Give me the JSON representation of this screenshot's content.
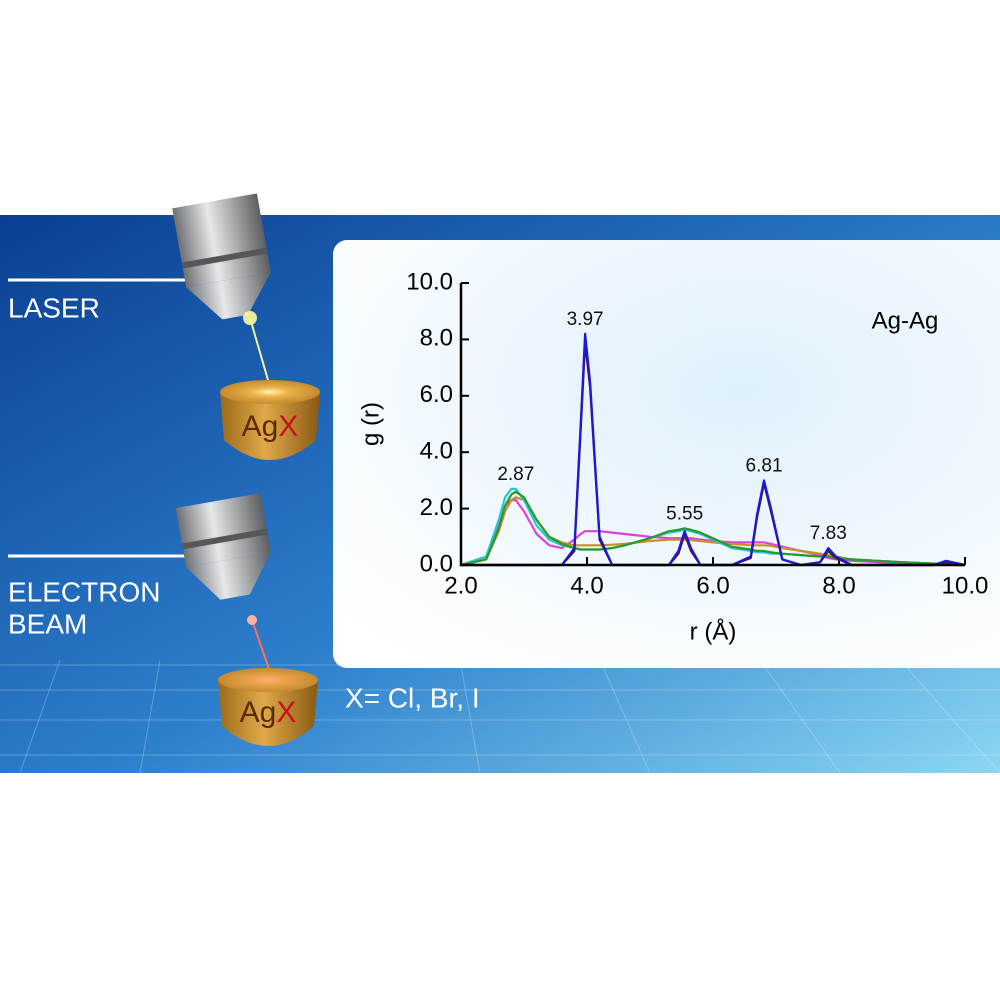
{
  "illustration": {
    "laser_label": "LASER",
    "electron_label": [
      "ELECTRON",
      "BEAM"
    ],
    "sample": {
      "element": "Ag",
      "variable": "X"
    },
    "note": "X= Cl, Br, I"
  },
  "chart_data": {
    "type": "line",
    "annotation": "Ag-Ag",
    "xlabel": "r (Å)",
    "ylabel": "g (r)",
    "xlim": [
      2.0,
      10.0
    ],
    "ylim": [
      0.0,
      10.0
    ],
    "xticks": [
      {
        "value": 2,
        "label": "2.0"
      },
      {
        "value": 4,
        "label": "4.0"
      },
      {
        "value": 6,
        "label": "6.0"
      },
      {
        "value": 8,
        "label": "8.0"
      },
      {
        "value": 10,
        "label": "10.0"
      }
    ],
    "yticks": [
      {
        "value": 0,
        "label": "0.0"
      },
      {
        "value": 2,
        "label": "2.0"
      },
      {
        "value": 4,
        "label": "4.0"
      },
      {
        "value": 6,
        "label": "6.0"
      },
      {
        "value": 8,
        "label": "8.0"
      },
      {
        "value": 10,
        "label": "10.0"
      }
    ],
    "peak_labels": [
      2.87,
      3.97,
      5.55,
      6.81,
      7.83
    ],
    "x": [
      2.0,
      2.4,
      2.6,
      2.7,
      2.8,
      2.87,
      3.0,
      3.2,
      3.4,
      3.6,
      3.8,
      3.9,
      3.97,
      4.05,
      4.2,
      4.4,
      4.6,
      5.0,
      5.3,
      5.45,
      5.55,
      5.65,
      5.8,
      6.0,
      6.3,
      6.6,
      6.7,
      6.81,
      6.92,
      7.1,
      7.4,
      7.7,
      7.83,
      7.95,
      8.2,
      8.6,
      9.0,
      9.5,
      9.7,
      9.9,
      10.0
    ],
    "series": [
      {
        "color": "#e03ee0",
        "values": [
          0,
          0.3,
          1.4,
          2.1,
          2.3,
          2.3,
          1.9,
          1.1,
          0.7,
          0.6,
          0.9,
          1.1,
          1.2,
          1.2,
          1.2,
          1.15,
          1.1,
          1.0,
          0.95,
          0.95,
          0.95,
          0.95,
          0.9,
          0.85,
          0.8,
          0.8,
          0.8,
          0.8,
          0.75,
          0.65,
          0.5,
          0.35,
          0.25,
          0.2,
          0.15,
          0.1,
          0.05,
          0.03,
          0.02,
          0,
          0
        ]
      },
      {
        "color": "#c89028",
        "values": [
          0,
          0.2,
          1.2,
          1.9,
          2.3,
          2.4,
          2.3,
          1.6,
          1.0,
          0.8,
          0.7,
          0.7,
          0.7,
          0.7,
          0.7,
          0.72,
          0.75,
          0.85,
          0.9,
          0.9,
          0.9,
          0.88,
          0.85,
          0.8,
          0.75,
          0.7,
          0.7,
          0.7,
          0.68,
          0.6,
          0.5,
          0.4,
          0.35,
          0.3,
          0.2,
          0.15,
          0.1,
          0.05,
          0.03,
          0,
          0
        ]
      },
      {
        "color": "#27c6d6",
        "values": [
          0,
          0.3,
          1.6,
          2.4,
          2.7,
          2.7,
          2.3,
          1.4,
          0.9,
          0.7,
          0.6,
          0.55,
          0.55,
          0.55,
          0.55,
          0.6,
          0.7,
          0.95,
          1.15,
          1.2,
          1.25,
          1.2,
          1.1,
          0.9,
          0.6,
          0.5,
          0.45,
          0.45,
          0.4,
          0.4,
          0.35,
          0.3,
          0.3,
          0.25,
          0.2,
          0.15,
          0.1,
          0.05,
          0.03,
          0,
          0
        ]
      },
      {
        "color": "#2a9a2a",
        "values": [
          0,
          0.2,
          1.3,
          2.1,
          2.5,
          2.6,
          2.4,
          1.6,
          1.0,
          0.75,
          0.6,
          0.55,
          0.55,
          0.55,
          0.55,
          0.6,
          0.7,
          0.95,
          1.2,
          1.25,
          1.3,
          1.25,
          1.15,
          0.95,
          0.65,
          0.55,
          0.5,
          0.5,
          0.45,
          0.4,
          0.35,
          0.3,
          0.3,
          0.25,
          0.2,
          0.15,
          0.1,
          0.05,
          0.03,
          0,
          0
        ]
      },
      {
        "color": "#5a0a30",
        "values": [
          0,
          0,
          0,
          0,
          0,
          0,
          0,
          0,
          0,
          0,
          0.5,
          4.8,
          7.9,
          6.3,
          0.9,
          0,
          0,
          0,
          0,
          0.4,
          1.1,
          0.5,
          0,
          0,
          0,
          0.25,
          1.7,
          2.9,
          1.9,
          0.2,
          0,
          0.1,
          0.5,
          0.25,
          0,
          0,
          0,
          0,
          0.1,
          0.04,
          0
        ]
      },
      {
        "color": "#1a1ad8",
        "values": [
          0,
          0,
          0,
          0,
          0,
          0,
          0,
          0,
          0,
          0,
          0.6,
          5.0,
          8.2,
          6.5,
          1.0,
          0,
          0,
          0,
          0,
          0.5,
          1.2,
          0.6,
          0,
          0,
          0,
          0.3,
          1.8,
          3.0,
          2.0,
          0.2,
          0,
          0.1,
          0.6,
          0.3,
          0,
          0,
          0,
          0,
          0.15,
          0.05,
          0
        ]
      }
    ]
  }
}
